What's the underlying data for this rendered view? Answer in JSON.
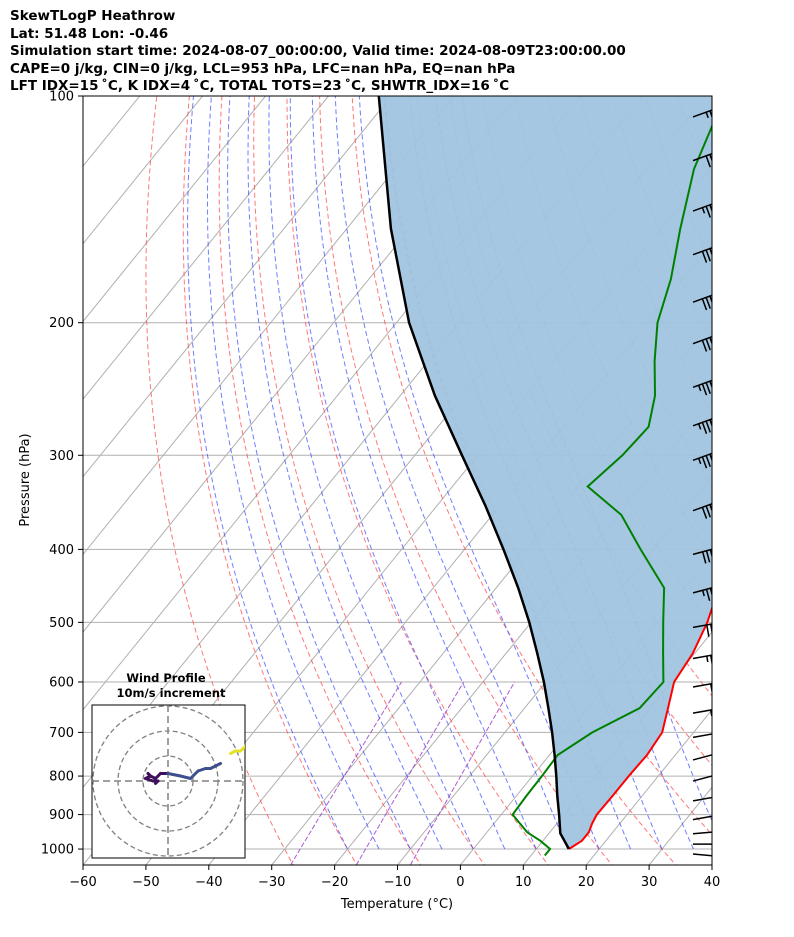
{
  "header": {
    "title": "SkewTLogP Heathrow",
    "latlon": "Lat: 51.48   Lon: -0.46",
    "sim_time": "Simulation start time: 2024-08-07_00:00:00, Valid time: 2024-08-09T23:00:00.00",
    "indices1": "CAPE=0 j/kg, CIN=0 j/kg, LCL=953 hPa, LFC=nan hPa, EQ=nan hPa",
    "indices2": "LFT IDX=15$^\\circ$C, K IDX=4$^\\circ$C, TOTAL TOTS=23$^\\circ$C, SHWTR_IDX=16$^\\circ$C"
  },
  "chart_data": [
    {
      "type": "skew-t",
      "title": "",
      "xlabel": "Temperature ($^\\circ$C)",
      "ylabel": "Pressure (hPa)",
      "xlim": [
        -60,
        40
      ],
      "ylim": [
        1050,
        100
      ],
      "yscale": "log",
      "grid": true,
      "x_ticks": [
        -60,
        -50,
        -40,
        -30,
        -20,
        -10,
        0,
        10,
        20,
        30,
        40
      ],
      "x_tick_labels": [
        "−60",
        "−50",
        "−40",
        "−30",
        "−20",
        "−10",
        "0",
        "10",
        "20",
        "30",
        "40"
      ],
      "y_ticks": [
        100,
        200,
        300,
        400,
        500,
        600,
        700,
        800,
        900,
        1000
      ],
      "y_tick_labels": [
        "100",
        "200",
        "300",
        "400",
        "500",
        "600",
        "700",
        "800",
        "900",
        "1000"
      ],
      "series": [
        {
          "key": "temperature",
          "color": "#ff0000",
          "points": [
            [
              1000,
              15.2
            ],
            [
              975,
              16.2
            ],
            [
              950,
              16.2
            ],
            [
              925,
              15.6
            ],
            [
              900,
              15.2
            ],
            [
              850,
              15.3
            ],
            [
              800,
              15.3
            ],
            [
              750,
              15.5
            ],
            [
              700,
              15.0
            ],
            [
              650,
              12.8
            ],
            [
              600,
              10.4
            ],
            [
              550,
              9.7
            ],
            [
              500,
              8.0
            ],
            [
              450,
              5.4
            ],
            [
              400,
              2.8
            ],
            [
              350,
              -1.4
            ],
            [
              300,
              -6.6
            ],
            [
              250,
              -13.0
            ],
            [
              225,
              -17.6
            ],
            [
              200,
              -22.5
            ],
            [
              175,
              -27.5
            ],
            [
              150,
              -33.5
            ],
            [
              125,
              -40.5
            ],
            [
              110,
              -45.0
            ],
            [
              100,
              -48.0
            ]
          ]
        },
        {
          "key": "dewpoint",
          "color": "#008000",
          "points": [
            [
              1020,
              12.2
            ],
            [
              1000,
              12.2
            ],
            [
              975,
              9.6
            ],
            [
              950,
              6.4
            ],
            [
              900,
              1.8
            ],
            [
              850,
              1.6
            ],
            [
              800,
              1.5
            ],
            [
              750,
              1.3
            ],
            [
              700,
              3.9
            ],
            [
              650,
              8.3
            ],
            [
              600,
              8.7
            ],
            [
              550,
              5.0
            ],
            [
              500,
              1.0
            ],
            [
              450,
              -3.3
            ],
            [
              400,
              -12.0
            ],
            [
              360,
              -19.5
            ],
            [
              330,
              -28.5
            ],
            [
              300,
              -27.0
            ],
            [
              275,
              -26.5
            ],
            [
              250,
              -29.5
            ],
            [
              225,
              -34.0
            ],
            [
              200,
              -38.5
            ],
            [
              175,
              -42.0
            ],
            [
              150,
              -47.0
            ],
            [
              125,
              -52.5
            ],
            [
              100,
              -57.0
            ]
          ]
        },
        {
          "key": "parcel",
          "color": "#000000",
          "points": [
            [
              1000,
              15.2
            ],
            [
              953,
              11.8
            ],
            [
              900,
              9.2
            ],
            [
              850,
              6.5
            ],
            [
              800,
              3.8
            ],
            [
              750,
              0.8
            ],
            [
              700,
              -2.5
            ],
            [
              650,
              -6.2
            ],
            [
              600,
              -10.3
            ],
            [
              550,
              -15.0
            ],
            [
              500,
              -20.3
            ],
            [
              450,
              -26.5
            ],
            [
              400,
              -33.8
            ],
            [
              350,
              -42.3
            ],
            [
              300,
              -52.5
            ],
            [
              250,
              -64.5
            ],
            [
              200,
              -78.0
            ],
            [
              150,
              -93.0
            ],
            [
              100,
              -112.0
            ]
          ]
        }
      ],
      "fill_color": "#a0c4df",
      "annotations": {
        "dry_adiabat_color": "#ff4a4a",
        "moist_adiabat_color": "#3246ff",
        "mixing_ratio_color": "#9932cc",
        "isotherm_color": "#b0b0b0"
      },
      "wind_barbs": [
        {
          "p": 1000,
          "speed": 25,
          "dir": 265
        },
        {
          "p": 970,
          "speed": 30,
          "dir": 270
        },
        {
          "p": 940,
          "speed": 30,
          "dir": 275
        },
        {
          "p": 900,
          "speed": 35,
          "dir": 280
        },
        {
          "p": 850,
          "speed": 35,
          "dir": 280
        },
        {
          "p": 800,
          "speed": 35,
          "dir": 285
        },
        {
          "p": 750,
          "speed": 40,
          "dir": 285
        },
        {
          "p": 700,
          "speed": 40,
          "dir": 280
        },
        {
          "p": 650,
          "speed": 45,
          "dir": 280
        },
        {
          "p": 600,
          "speed": 50,
          "dir": 280
        },
        {
          "p": 550,
          "speed": 55,
          "dir": 280
        },
        {
          "p": 500,
          "speed": 60,
          "dir": 280
        },
        {
          "p": 450,
          "speed": 65,
          "dir": 285
        },
        {
          "p": 400,
          "speed": 70,
          "dir": 285
        },
        {
          "p": 350,
          "speed": 70,
          "dir": 290
        },
        {
          "p": 300,
          "speed": 75,
          "dir": 290
        },
        {
          "p": 270,
          "speed": 75,
          "dir": 290
        },
        {
          "p": 240,
          "speed": 75,
          "dir": 290
        },
        {
          "p": 210,
          "speed": 70,
          "dir": 290
        },
        {
          "p": 185,
          "speed": 70,
          "dir": 290
        },
        {
          "p": 160,
          "speed": 70,
          "dir": 290
        },
        {
          "p": 140,
          "speed": 65,
          "dir": 290
        },
        {
          "p": 120,
          "speed": 60,
          "dir": 290
        },
        {
          "p": 105,
          "speed": 55,
          "dir": 290
        }
      ]
    },
    {
      "type": "hodograph",
      "title": "Wind Profile",
      "subtitle": "10m/s increment",
      "ring_increment": 10,
      "rings": [
        10,
        20,
        30
      ],
      "uv": [
        [
          -5,
          -1
        ],
        [
          -4,
          0
        ],
        [
          -6,
          0
        ],
        [
          -9,
          1
        ],
        [
          -7,
          2
        ],
        [
          -8,
          3
        ],
        [
          -7,
          2
        ],
        [
          -5,
          1
        ],
        [
          -3,
          3
        ],
        [
          0,
          3
        ],
        [
          5,
          2
        ],
        [
          9,
          1
        ],
        [
          12,
          4
        ],
        [
          15,
          5
        ],
        [
          17,
          5
        ],
        [
          19,
          6
        ],
        [
          21,
          7
        ]
      ],
      "upper_uv": [
        [
          25,
          11
        ],
        [
          27,
          12
        ],
        [
          29,
          12
        ],
        [
          31,
          14
        ]
      ],
      "colors": [
        "#3f0f5c",
        "#3e4f8e",
        "#e6e228"
      ]
    }
  ]
}
